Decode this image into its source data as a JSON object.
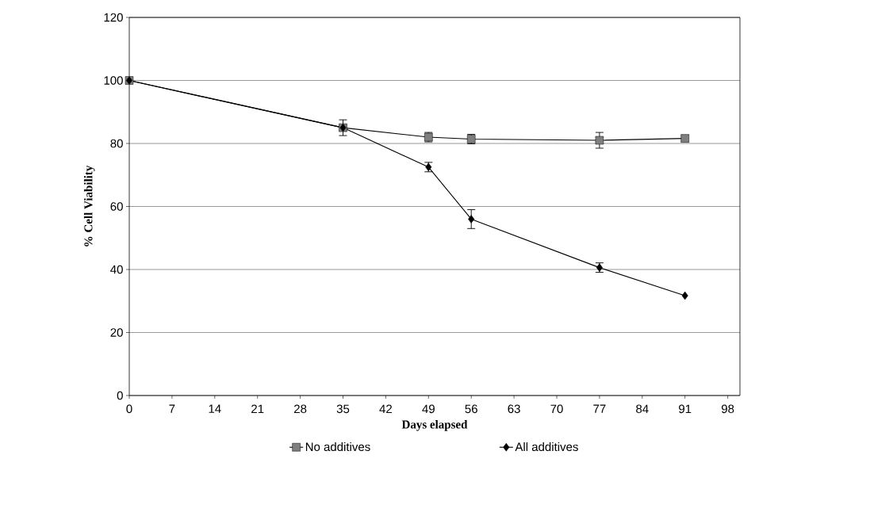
{
  "chart_data": {
    "type": "line",
    "xlabel": "Days elapsed",
    "ylabel": "% Cell Viability",
    "x": [
      0,
      35,
      49,
      56,
      77,
      91
    ],
    "series": [
      {
        "name": "No additives",
        "color": "#7f7f7f",
        "marker": "square",
        "values": [
          100,
          85,
          82,
          81.4,
          81,
          81.6
        ],
        "errors": [
          0.5,
          2.5,
          1.5,
          1.5,
          2.5,
          1
        ]
      },
      {
        "name": "All additives",
        "color": "#000000",
        "marker": "diamond",
        "values": [
          100,
          85,
          72.5,
          56,
          40.6,
          31.7
        ],
        "errors": [
          null,
          null,
          1.5,
          3,
          1.5,
          null
        ]
      }
    ],
    "xlim": [
      0,
      100
    ],
    "xticks": [
      0,
      7,
      14,
      21,
      28,
      35,
      42,
      49,
      56,
      63,
      70,
      77,
      84,
      91,
      98
    ],
    "ylim": [
      0,
      120
    ],
    "yticks": [
      0,
      20,
      40,
      60,
      80,
      100,
      120
    ],
    "grid": "y",
    "legend": "bottom"
  }
}
